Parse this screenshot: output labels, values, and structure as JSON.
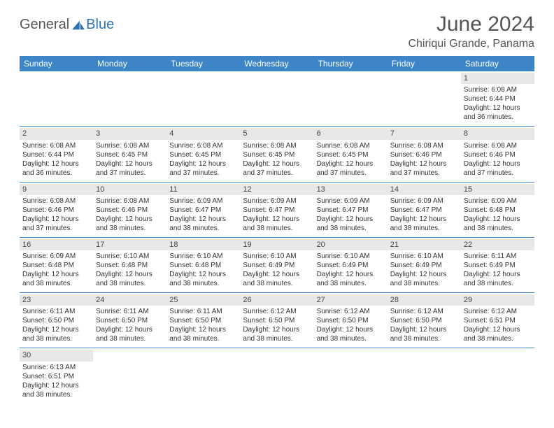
{
  "logo": {
    "text_general": "General",
    "text_blue": "Blue"
  },
  "header": {
    "title": "June 2024",
    "location": "Chiriqui Grande, Panama"
  },
  "colors": {
    "header_bg": "#3d85c6",
    "header_fg": "#ffffff",
    "daynum_bg": "#e8e8e8",
    "border": "#3d85c6",
    "text": "#333333",
    "logo_gray": "#555555",
    "logo_blue": "#2f73b5"
  },
  "day_names": [
    "Sunday",
    "Monday",
    "Tuesday",
    "Wednesday",
    "Thursday",
    "Friday",
    "Saturday"
  ],
  "weeks": [
    [
      {
        "n": "",
        "lines": [
          "",
          "",
          "",
          ""
        ]
      },
      {
        "n": "",
        "lines": [
          "",
          "",
          "",
          ""
        ]
      },
      {
        "n": "",
        "lines": [
          "",
          "",
          "",
          ""
        ]
      },
      {
        "n": "",
        "lines": [
          "",
          "",
          "",
          ""
        ]
      },
      {
        "n": "",
        "lines": [
          "",
          "",
          "",
          ""
        ]
      },
      {
        "n": "",
        "lines": [
          "",
          "",
          "",
          ""
        ]
      },
      {
        "n": "1",
        "lines": [
          "Sunrise: 6:08 AM",
          "Sunset: 6:44 PM",
          "Daylight: 12 hours",
          "and 36 minutes."
        ]
      }
    ],
    [
      {
        "n": "2",
        "lines": [
          "Sunrise: 6:08 AM",
          "Sunset: 6:44 PM",
          "Daylight: 12 hours",
          "and 36 minutes."
        ]
      },
      {
        "n": "3",
        "lines": [
          "Sunrise: 6:08 AM",
          "Sunset: 6:45 PM",
          "Daylight: 12 hours",
          "and 37 minutes."
        ]
      },
      {
        "n": "4",
        "lines": [
          "Sunrise: 6:08 AM",
          "Sunset: 6:45 PM",
          "Daylight: 12 hours",
          "and 37 minutes."
        ]
      },
      {
        "n": "5",
        "lines": [
          "Sunrise: 6:08 AM",
          "Sunset: 6:45 PM",
          "Daylight: 12 hours",
          "and 37 minutes."
        ]
      },
      {
        "n": "6",
        "lines": [
          "Sunrise: 6:08 AM",
          "Sunset: 6:45 PM",
          "Daylight: 12 hours",
          "and 37 minutes."
        ]
      },
      {
        "n": "7",
        "lines": [
          "Sunrise: 6:08 AM",
          "Sunset: 6:46 PM",
          "Daylight: 12 hours",
          "and 37 minutes."
        ]
      },
      {
        "n": "8",
        "lines": [
          "Sunrise: 6:08 AM",
          "Sunset: 6:46 PM",
          "Daylight: 12 hours",
          "and 37 minutes."
        ]
      }
    ],
    [
      {
        "n": "9",
        "lines": [
          "Sunrise: 6:08 AM",
          "Sunset: 6:46 PM",
          "Daylight: 12 hours",
          "and 37 minutes."
        ]
      },
      {
        "n": "10",
        "lines": [
          "Sunrise: 6:08 AM",
          "Sunset: 6:46 PM",
          "Daylight: 12 hours",
          "and 38 minutes."
        ]
      },
      {
        "n": "11",
        "lines": [
          "Sunrise: 6:09 AM",
          "Sunset: 6:47 PM",
          "Daylight: 12 hours",
          "and 38 minutes."
        ]
      },
      {
        "n": "12",
        "lines": [
          "Sunrise: 6:09 AM",
          "Sunset: 6:47 PM",
          "Daylight: 12 hours",
          "and 38 minutes."
        ]
      },
      {
        "n": "13",
        "lines": [
          "Sunrise: 6:09 AM",
          "Sunset: 6:47 PM",
          "Daylight: 12 hours",
          "and 38 minutes."
        ]
      },
      {
        "n": "14",
        "lines": [
          "Sunrise: 6:09 AM",
          "Sunset: 6:47 PM",
          "Daylight: 12 hours",
          "and 38 minutes."
        ]
      },
      {
        "n": "15",
        "lines": [
          "Sunrise: 6:09 AM",
          "Sunset: 6:48 PM",
          "Daylight: 12 hours",
          "and 38 minutes."
        ]
      }
    ],
    [
      {
        "n": "16",
        "lines": [
          "Sunrise: 6:09 AM",
          "Sunset: 6:48 PM",
          "Daylight: 12 hours",
          "and 38 minutes."
        ]
      },
      {
        "n": "17",
        "lines": [
          "Sunrise: 6:10 AM",
          "Sunset: 6:48 PM",
          "Daylight: 12 hours",
          "and 38 minutes."
        ]
      },
      {
        "n": "18",
        "lines": [
          "Sunrise: 6:10 AM",
          "Sunset: 6:48 PM",
          "Daylight: 12 hours",
          "and 38 minutes."
        ]
      },
      {
        "n": "19",
        "lines": [
          "Sunrise: 6:10 AM",
          "Sunset: 6:49 PM",
          "Daylight: 12 hours",
          "and 38 minutes."
        ]
      },
      {
        "n": "20",
        "lines": [
          "Sunrise: 6:10 AM",
          "Sunset: 6:49 PM",
          "Daylight: 12 hours",
          "and 38 minutes."
        ]
      },
      {
        "n": "21",
        "lines": [
          "Sunrise: 6:10 AM",
          "Sunset: 6:49 PM",
          "Daylight: 12 hours",
          "and 38 minutes."
        ]
      },
      {
        "n": "22",
        "lines": [
          "Sunrise: 6:11 AM",
          "Sunset: 6:49 PM",
          "Daylight: 12 hours",
          "and 38 minutes."
        ]
      }
    ],
    [
      {
        "n": "23",
        "lines": [
          "Sunrise: 6:11 AM",
          "Sunset: 6:50 PM",
          "Daylight: 12 hours",
          "and 38 minutes."
        ]
      },
      {
        "n": "24",
        "lines": [
          "Sunrise: 6:11 AM",
          "Sunset: 6:50 PM",
          "Daylight: 12 hours",
          "and 38 minutes."
        ]
      },
      {
        "n": "25",
        "lines": [
          "Sunrise: 6:11 AM",
          "Sunset: 6:50 PM",
          "Daylight: 12 hours",
          "and 38 minutes."
        ]
      },
      {
        "n": "26",
        "lines": [
          "Sunrise: 6:12 AM",
          "Sunset: 6:50 PM",
          "Daylight: 12 hours",
          "and 38 minutes."
        ]
      },
      {
        "n": "27",
        "lines": [
          "Sunrise: 6:12 AM",
          "Sunset: 6:50 PM",
          "Daylight: 12 hours",
          "and 38 minutes."
        ]
      },
      {
        "n": "28",
        "lines": [
          "Sunrise: 6:12 AM",
          "Sunset: 6:50 PM",
          "Daylight: 12 hours",
          "and 38 minutes."
        ]
      },
      {
        "n": "29",
        "lines": [
          "Sunrise: 6:12 AM",
          "Sunset: 6:51 PM",
          "Daylight: 12 hours",
          "and 38 minutes."
        ]
      }
    ],
    [
      {
        "n": "30",
        "lines": [
          "Sunrise: 6:13 AM",
          "Sunset: 6:51 PM",
          "Daylight: 12 hours",
          "and 38 minutes."
        ]
      },
      {
        "n": "",
        "lines": [
          "",
          "",
          "",
          ""
        ]
      },
      {
        "n": "",
        "lines": [
          "",
          "",
          "",
          ""
        ]
      },
      {
        "n": "",
        "lines": [
          "",
          "",
          "",
          ""
        ]
      },
      {
        "n": "",
        "lines": [
          "",
          "",
          "",
          ""
        ]
      },
      {
        "n": "",
        "lines": [
          "",
          "",
          "",
          ""
        ]
      },
      {
        "n": "",
        "lines": [
          "",
          "",
          "",
          ""
        ]
      }
    ]
  ]
}
